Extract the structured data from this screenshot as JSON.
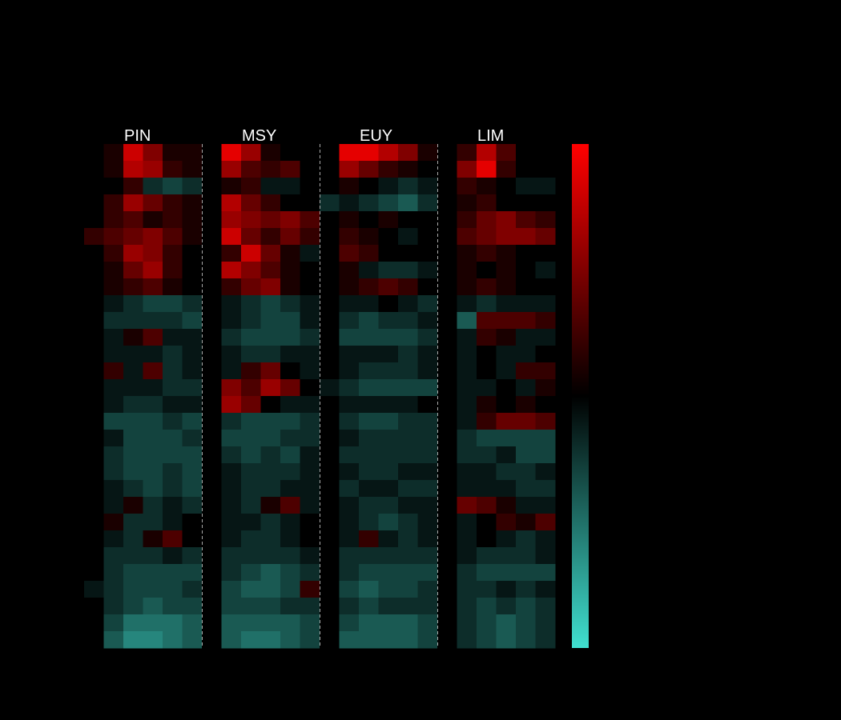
{
  "chart_data": {
    "type": "heatmap",
    "categories": [
      "PIN",
      "MSY",
      "EUY",
      "LIM"
    ],
    "zlim": [
      -1,
      1
    ],
    "colors": {
      "low": "#40e0d0",
      "mid": "#000000",
      "high": "#ff0000"
    },
    "values": [
      [
        0,
        0.1,
        0.8,
        0.5,
        0.1,
        0.1,
        0,
        0.9,
        0.6,
        0.1,
        0,
        0,
        0,
        0.9,
        0.9,
        0.7,
        0.5,
        0.1,
        0,
        0.2,
        0.7,
        0.3,
        0,
        0
      ],
      [
        0,
        0.1,
        0.7,
        0.6,
        0.2,
        0.1,
        0,
        0.6,
        0.3,
        0.2,
        0.3,
        0,
        0,
        0.6,
        0.4,
        0.2,
        0.1,
        0,
        0,
        0.5,
        0.9,
        0.2,
        0,
        0
      ],
      [
        0,
        0,
        0.2,
        -0.2,
        -0.3,
        -0.2,
        0,
        0.1,
        0.2,
        -0.1,
        -0.1,
        0,
        0,
        0.1,
        0,
        -0.1,
        -0.2,
        -0.1,
        0,
        0.2,
        0.1,
        0,
        -0.1,
        -0.1
      ],
      [
        0,
        0.2,
        0.6,
        0.4,
        0.2,
        0.1,
        0,
        0.7,
        0.4,
        0.2,
        0,
        0,
        -0.2,
        -0.1,
        -0.2,
        -0.3,
        -0.4,
        -0.2,
        0,
        0.1,
        0.2,
        0,
        0,
        0
      ],
      [
        0,
        0.2,
        0.3,
        0.1,
        0.2,
        0.1,
        0,
        0.6,
        0.5,
        0.4,
        0.5,
        0.3,
        0,
        0.1,
        0,
        0.1,
        0,
        0,
        0,
        0.2,
        0.4,
        0.5,
        0.3,
        0.2
      ],
      [
        0.2,
        0.3,
        0.4,
        0.5,
        0.3,
        0.1,
        0,
        0.8,
        0.4,
        0.2,
        0.4,
        0.2,
        0,
        0.2,
        0.1,
        0,
        -0.1,
        0,
        0,
        0.3,
        0.4,
        0.5,
        0.5,
        0.4
      ],
      [
        0,
        0.2,
        0.6,
        0.5,
        0.2,
        0,
        0,
        0.2,
        0.8,
        0.4,
        0.1,
        -0.1,
        0,
        0.3,
        0.2,
        0,
        0,
        0,
        0,
        0.1,
        0.2,
        0.1,
        0,
        0
      ],
      [
        0,
        0.1,
        0.4,
        0.6,
        0.2,
        0,
        0,
        0.7,
        0.5,
        0.3,
        0.1,
        0,
        0,
        0.1,
        -0.1,
        -0.2,
        -0.2,
        -0.1,
        0,
        0.1,
        0,
        0.1,
        0,
        -0.1
      ],
      [
        0,
        0.1,
        0.2,
        0.3,
        0.1,
        0,
        0,
        0.2,
        0.4,
        0.5,
        0.1,
        0,
        0,
        0.1,
        0.2,
        0.3,
        0.2,
        0,
        0,
        0.1,
        0.2,
        0.1,
        0,
        0
      ],
      [
        0,
        -0.1,
        -0.2,
        -0.3,
        -0.3,
        -0.2,
        0,
        -0.1,
        -0.2,
        -0.3,
        -0.2,
        -0.1,
        0,
        -0.1,
        -0.1,
        0,
        -0.1,
        -0.2,
        0,
        -0.1,
        -0.2,
        -0.1,
        -0.1,
        -0.1
      ],
      [
        0,
        -0.2,
        -0.2,
        -0.2,
        -0.2,
        -0.3,
        0,
        -0.1,
        -0.2,
        -0.3,
        -0.3,
        -0.1,
        0,
        -0.2,
        -0.3,
        -0.2,
        -0.2,
        -0.1,
        0,
        -0.4,
        0.3,
        0.3,
        0.3,
        0.2
      ],
      [
        0,
        -0.1,
        0.1,
        0.3,
        -0.1,
        -0.1,
        0,
        -0.2,
        -0.3,
        -0.3,
        -0.3,
        -0.2,
        0,
        -0.3,
        -0.3,
        -0.3,
        -0.3,
        -0.2,
        0,
        -0.1,
        0.2,
        0.1,
        -0.1,
        -0.1
      ],
      [
        0,
        -0.1,
        -0.1,
        -0.1,
        -0.2,
        -0.1,
        0,
        -0.1,
        -0.2,
        -0.2,
        -0.1,
        -0.1,
        0,
        -0.1,
        -0.1,
        -0.1,
        -0.2,
        -0.1,
        0,
        -0.1,
        0,
        -0.1,
        -0.1,
        0
      ],
      [
        0,
        0.2,
        -0.1,
        0.3,
        -0.2,
        -0.1,
        0,
        -0.1,
        0.2,
        0.4,
        0,
        -0.1,
        0,
        -0.1,
        -0.2,
        -0.2,
        -0.2,
        -0.1,
        0,
        -0.1,
        0,
        -0.1,
        0.2,
        0.2
      ],
      [
        0,
        -0.1,
        -0.1,
        -0.1,
        -0.2,
        -0.2,
        0,
        0.5,
        0.3,
        0.6,
        0.4,
        0,
        -0.1,
        -0.2,
        -0.3,
        -0.3,
        -0.3,
        -0.3,
        0,
        -0.1,
        -0.1,
        0,
        -0.1,
        0.1
      ],
      [
        0,
        -0.1,
        -0.2,
        -0.2,
        -0.1,
        -0.1,
        0,
        0.6,
        0.4,
        0,
        -0.1,
        -0.1,
        0,
        -0.1,
        -0.1,
        -0.1,
        -0.1,
        0,
        0,
        -0.1,
        0.1,
        0,
        0.1,
        0
      ],
      [
        0,
        -0.3,
        -0.3,
        -0.3,
        -0.2,
        -0.3,
        0,
        -0.2,
        -0.3,
        -0.3,
        -0.3,
        -0.2,
        0,
        -0.2,
        -0.3,
        -0.3,
        -0.2,
        -0.2,
        0,
        -0.1,
        0.2,
        0.4,
        0.4,
        0.3
      ],
      [
        0,
        -0.1,
        -0.3,
        -0.3,
        -0.3,
        -0.2,
        0,
        -0.3,
        -0.3,
        -0.3,
        -0.2,
        -0.2,
        0,
        -0.1,
        -0.2,
        -0.2,
        -0.2,
        -0.2,
        0,
        -0.2,
        -0.3,
        -0.3,
        -0.3,
        -0.3
      ],
      [
        0,
        -0.2,
        -0.3,
        -0.3,
        -0.3,
        -0.3,
        0,
        -0.2,
        -0.3,
        -0.2,
        -0.3,
        -0.1,
        0,
        -0.2,
        -0.2,
        -0.2,
        -0.2,
        -0.2,
        0,
        -0.2,
        -0.2,
        -0.1,
        -0.3,
        -0.3
      ],
      [
        0,
        -0.2,
        -0.3,
        -0.3,
        -0.2,
        -0.3,
        0,
        -0.1,
        -0.2,
        -0.2,
        -0.2,
        -0.1,
        0,
        -0.1,
        -0.2,
        -0.2,
        -0.1,
        -0.1,
        0,
        -0.1,
        -0.1,
        -0.2,
        -0.2,
        -0.1
      ],
      [
        0,
        -0.1,
        -0.2,
        -0.3,
        -0.2,
        -0.3,
        0,
        -0.1,
        -0.2,
        -0.2,
        -0.1,
        -0.1,
        0,
        -0.2,
        -0.1,
        -0.1,
        -0.2,
        -0.2,
        0,
        -0.1,
        -0.1,
        -0.1,
        -0.2,
        -0.2
      ],
      [
        0,
        -0.1,
        0.1,
        -0.2,
        -0.1,
        -0.2,
        0,
        -0.1,
        -0.2,
        0.1,
        0.3,
        -0.1,
        0,
        -0.1,
        -0.2,
        -0.2,
        -0.1,
        -0.1,
        0,
        0.4,
        0.3,
        0.1,
        -0.1,
        -0.1
      ],
      [
        0,
        0.1,
        -0.2,
        -0.2,
        -0.1,
        0,
        0,
        -0.1,
        -0.1,
        -0.2,
        -0.1,
        0,
        0,
        -0.1,
        -0.2,
        -0.3,
        -0.2,
        -0.1,
        0,
        -0.1,
        0,
        0.2,
        0.1,
        0.3
      ],
      [
        0,
        -0.1,
        -0.2,
        0.1,
        0.3,
        0,
        0,
        -0.1,
        -0.2,
        -0.2,
        -0.1,
        0,
        0,
        -0.1,
        0.2,
        -0.1,
        -0.2,
        -0.1,
        0,
        -0.1,
        0,
        -0.1,
        -0.2,
        -0.1
      ],
      [
        0,
        -0.2,
        -0.2,
        -0.2,
        -0.1,
        -0.2,
        0,
        -0.2,
        -0.2,
        -0.2,
        -0.2,
        -0.1,
        0,
        -0.2,
        -0.2,
        -0.2,
        -0.2,
        -0.2,
        0,
        -0.1,
        -0.2,
        -0.2,
        -0.2,
        -0.1
      ],
      [
        0,
        -0.2,
        -0.3,
        -0.3,
        -0.3,
        -0.3,
        0,
        -0.2,
        -0.3,
        -0.4,
        -0.3,
        -0.2,
        0,
        -0.2,
        -0.3,
        -0.3,
        -0.3,
        -0.3,
        0,
        -0.2,
        -0.3,
        -0.3,
        -0.3,
        -0.3
      ],
      [
        -0.1,
        -0.2,
        -0.3,
        -0.3,
        -0.3,
        -0.2,
        0,
        -0.3,
        -0.4,
        -0.4,
        -0.3,
        0.2,
        0,
        -0.3,
        -0.4,
        -0.3,
        -0.3,
        -0.2,
        0,
        -0.2,
        -0.2,
        -0.1,
        -0.2,
        -0.1
      ],
      [
        0,
        -0.2,
        -0.3,
        -0.4,
        -0.3,
        -0.3,
        0,
        -0.3,
        -0.3,
        -0.3,
        -0.2,
        -0.2,
        0,
        -0.2,
        -0.3,
        -0.2,
        -0.2,
        -0.2,
        0,
        -0.2,
        -0.3,
        -0.2,
        -0.3,
        -0.2
      ],
      [
        0,
        -0.3,
        -0.5,
        -0.5,
        -0.5,
        -0.4,
        0,
        -0.4,
        -0.4,
        -0.4,
        -0.4,
        -0.3,
        0,
        -0.3,
        -0.4,
        -0.4,
        -0.4,
        -0.3,
        0,
        -0.2,
        -0.3,
        -0.4,
        -0.3,
        -0.2
      ],
      [
        0,
        -0.4,
        -0.6,
        -0.6,
        -0.5,
        -0.4,
        0,
        -0.4,
        -0.5,
        -0.5,
        -0.4,
        -0.3,
        0,
        -0.4,
        -0.4,
        -0.4,
        -0.4,
        -0.3,
        0,
        -0.2,
        -0.3,
        -0.4,
        -0.3,
        -0.2
      ]
    ]
  }
}
